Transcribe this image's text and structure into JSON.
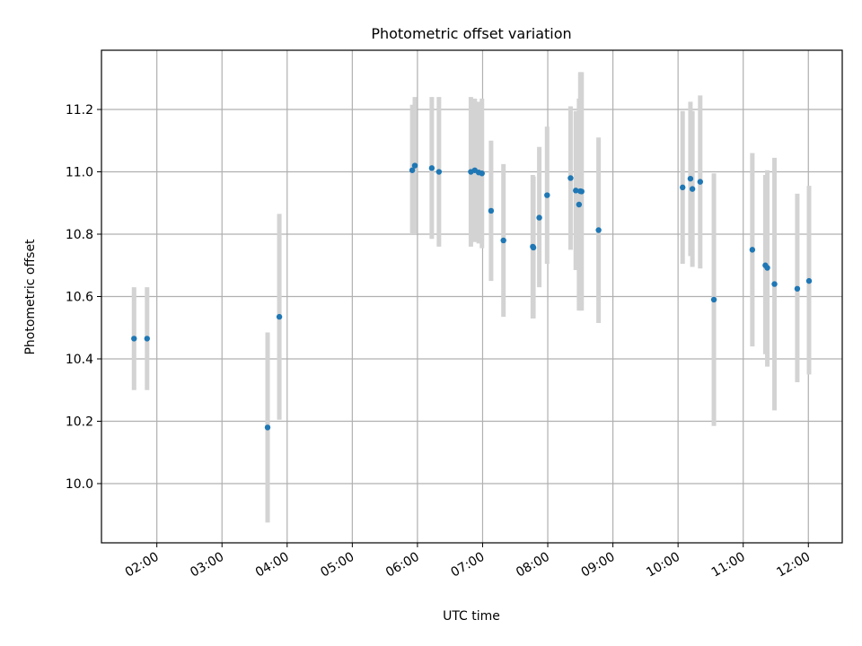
{
  "chart_data": {
    "type": "scatter",
    "title": "Photometric offset variation",
    "xlabel": "UTC time",
    "ylabel": "Photometric offset",
    "x_tick_labels": [
      "02:00",
      "03:00",
      "04:00",
      "05:00",
      "06:00",
      "07:00",
      "08:00",
      "09:00",
      "10:00",
      "11:00",
      "12:00"
    ],
    "x_ticks_hours": [
      2,
      3,
      4,
      5,
      6,
      7,
      8,
      9,
      10,
      11,
      12
    ],
    "xlim_hours": [
      1.15,
      12.52
    ],
    "y_tick_labels": [
      "10.0",
      "10.2",
      "10.4",
      "10.6",
      "10.8",
      "11.0",
      "11.2"
    ],
    "y_ticks": [
      10.0,
      10.2,
      10.4,
      10.6,
      10.8,
      11.0,
      11.2
    ],
    "ylim": [
      9.81,
      11.39
    ],
    "grid": true,
    "x_unit": "hour of day (UTC)",
    "colors": {
      "point": "#1f77b4",
      "errorbar": "#d3d3d3"
    },
    "points": [
      {
        "x": 1.65,
        "y": 10.465,
        "ylo": 10.3,
        "yhi": 10.63
      },
      {
        "x": 1.85,
        "y": 10.465,
        "ylo": 10.3,
        "yhi": 10.63
      },
      {
        "x": 3.7,
        "y": 10.18,
        "ylo": 9.875,
        "yhi": 10.485
      },
      {
        "x": 3.88,
        "y": 10.535,
        "ylo": 10.205,
        "yhi": 10.865
      },
      {
        "x": 5.92,
        "y": 11.005,
        "ylo": 10.8,
        "yhi": 11.215
      },
      {
        "x": 5.96,
        "y": 11.02,
        "ylo": 10.8,
        "yhi": 11.24
      },
      {
        "x": 6.22,
        "y": 11.012,
        "ylo": 10.785,
        "yhi": 11.24
      },
      {
        "x": 6.33,
        "y": 11.0,
        "ylo": 10.76,
        "yhi": 11.24
      },
      {
        "x": 6.82,
        "y": 11.0,
        "ylo": 10.76,
        "yhi": 11.24
      },
      {
        "x": 6.88,
        "y": 11.005,
        "ylo": 10.775,
        "yhi": 11.235
      },
      {
        "x": 6.94,
        "y": 10.998,
        "ylo": 10.77,
        "yhi": 11.225
      },
      {
        "x": 6.99,
        "y": 10.995,
        "ylo": 10.755,
        "yhi": 11.235
      },
      {
        "x": 7.13,
        "y": 10.875,
        "ylo": 10.65,
        "yhi": 11.1
      },
      {
        "x": 7.32,
        "y": 10.78,
        "ylo": 10.535,
        "yhi": 11.025
      },
      {
        "x": 7.77,
        "y": 10.76,
        "ylo": 10.53,
        "yhi": 10.99
      },
      {
        "x": 7.78,
        "y": 10.757,
        "ylo": 10.53,
        "yhi": 10.985
      },
      {
        "x": 7.87,
        "y": 10.853,
        "ylo": 10.63,
        "yhi": 11.08
      },
      {
        "x": 7.99,
        "y": 10.925,
        "ylo": 10.705,
        "yhi": 11.145
      },
      {
        "x": 8.35,
        "y": 10.98,
        "ylo": 10.75,
        "yhi": 11.21
      },
      {
        "x": 8.43,
        "y": 10.94,
        "ylo": 10.685,
        "yhi": 11.195
      },
      {
        "x": 8.48,
        "y": 10.895,
        "ylo": 10.555,
        "yhi": 11.235
      },
      {
        "x": 8.5,
        "y": 10.938,
        "ylo": 10.555,
        "yhi": 11.32
      },
      {
        "x": 8.52,
        "y": 10.937,
        "ylo": 10.555,
        "yhi": 11.32
      },
      {
        "x": 8.78,
        "y": 10.813,
        "ylo": 10.515,
        "yhi": 11.11
      },
      {
        "x": 10.07,
        "y": 10.95,
        "ylo": 10.705,
        "yhi": 11.195
      },
      {
        "x": 10.19,
        "y": 10.978,
        "ylo": 10.73,
        "yhi": 11.225
      },
      {
        "x": 10.22,
        "y": 10.945,
        "ylo": 10.695,
        "yhi": 11.195
      },
      {
        "x": 10.34,
        "y": 10.968,
        "ylo": 10.69,
        "yhi": 11.245
      },
      {
        "x": 10.55,
        "y": 10.59,
        "ylo": 10.185,
        "yhi": 10.995
      },
      {
        "x": 11.14,
        "y": 10.75,
        "ylo": 10.44,
        "yhi": 11.06
      },
      {
        "x": 11.34,
        "y": 10.7,
        "ylo": 10.415,
        "yhi": 10.99
      },
      {
        "x": 11.37,
        "y": 10.692,
        "ylo": 10.375,
        "yhi": 11.005
      },
      {
        "x": 11.48,
        "y": 10.64,
        "ylo": 10.235,
        "yhi": 11.045
      },
      {
        "x": 11.83,
        "y": 10.625,
        "ylo": 10.325,
        "yhi": 10.93
      },
      {
        "x": 12.01,
        "y": 10.65,
        "ylo": 10.35,
        "yhi": 10.955
      }
    ]
  }
}
